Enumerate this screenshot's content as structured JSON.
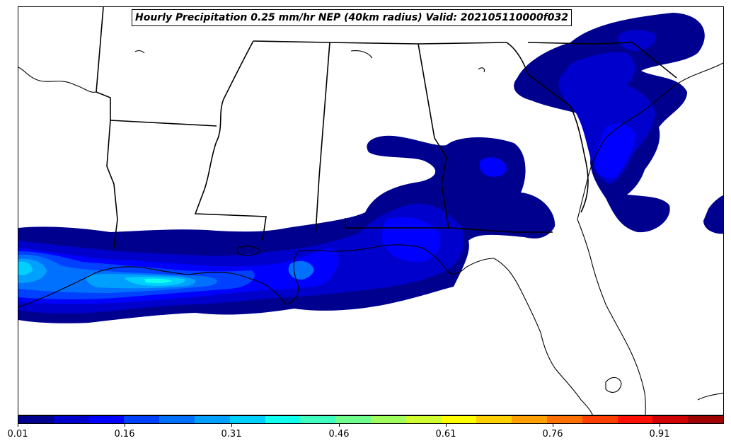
{
  "title": "Hourly Precipitation 0.25 mm/hr NEP (40km radius) Valid: 202105110000f032",
  "colorbar": {
    "colors": [
      "#00008f",
      "#0000cc",
      "#0000ff",
      "#0040ff",
      "#0070ff",
      "#00a0ff",
      "#00d0ff",
      "#10ffef",
      "#40ffbf",
      "#70ff8f",
      "#a0ff5f",
      "#cfff30",
      "#ffff00",
      "#ffd000",
      "#ffa000",
      "#ff7000",
      "#ff4000",
      "#ff1000",
      "#d00000",
      "#9f0000"
    ],
    "ticks": [
      {
        "value": 0.01,
        "label": "0.01"
      },
      {
        "value": 0.16,
        "label": "0.16"
      },
      {
        "value": 0.31,
        "label": "0.31"
      },
      {
        "value": 0.46,
        "label": "0.46"
      },
      {
        "value": 0.61,
        "label": "0.61"
      },
      {
        "value": 0.76,
        "label": "0.76"
      },
      {
        "value": 0.91,
        "label": "0.91"
      }
    ],
    "range": [
      0.01,
      1.0
    ]
  },
  "map": {
    "region": "Southeastern United States and northern Gulf of Mexico",
    "layers": [
      "state-borders",
      "coastlines",
      "precipitation-probability-fill"
    ]
  }
}
